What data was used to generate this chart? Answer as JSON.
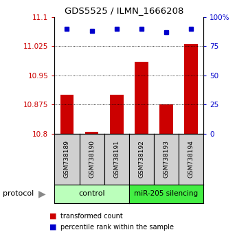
{
  "title": "GDS5525 / ILMN_1666208",
  "categories": [
    "GSM738189",
    "GSM738190",
    "GSM738191",
    "GSM738192",
    "GSM738193",
    "GSM738194"
  ],
  "bar_values": [
    10.9,
    10.805,
    10.9,
    10.985,
    10.875,
    11.03
  ],
  "bar_base": 10.8,
  "dot_values": [
    90,
    88,
    90,
    90,
    87,
    90
  ],
  "left_yticks": [
    10.8,
    10.875,
    10.95,
    11.025,
    11.1
  ],
  "left_ylim": [
    10.8,
    11.1
  ],
  "right_ylim": [
    0,
    100
  ],
  "right_yticks": [
    0,
    25,
    50,
    75,
    100
  ],
  "bar_color": "#cc0000",
  "dot_color": "#0000cc",
  "ctrl_color": "#bbffbb",
  "mir_color": "#44ee44",
  "sample_bg": "#d0d0d0",
  "protocol_label": "protocol",
  "legend_bar_label": "transformed count",
  "legend_dot_label": "percentile rank within the sample",
  "bg_color": "#ffffff"
}
